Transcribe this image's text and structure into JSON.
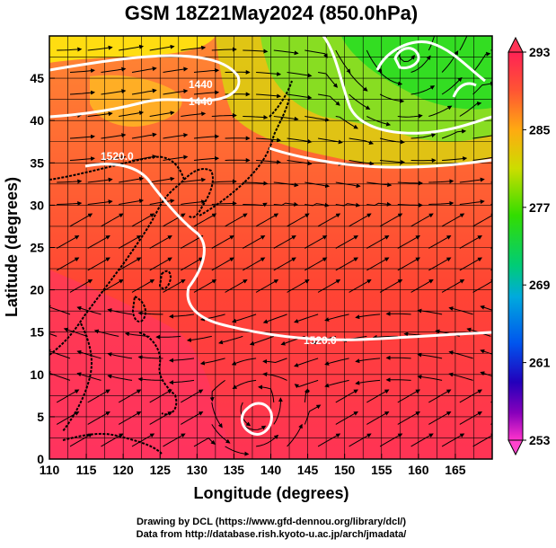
{
  "title": "GSM 18Z21May2024 (850.0hPa)",
  "x_axis": {
    "label": "Longitude (degrees)",
    "ticks": [
      "110",
      "115",
      "120",
      "125",
      "130",
      "135",
      "140",
      "145",
      "150",
      "155",
      "160",
      "165"
    ],
    "range": [
      110,
      170
    ]
  },
  "y_axis": {
    "label": "Latitude  (degrees)",
    "ticks": [
      "0",
      "5",
      "10",
      "15",
      "20",
      "25",
      "30",
      "35",
      "40",
      "45"
    ],
    "range": [
      0,
      50
    ]
  },
  "colorbar": {
    "ticks": [
      "293",
      "285",
      "277",
      "269",
      "261",
      "253"
    ],
    "range": [
      253,
      293
    ],
    "colors": [
      "#ff2255",
      "#ff3344",
      "#ff5533",
      "#ff8822",
      "#ffaa11",
      "#ddcc00",
      "#99dd00",
      "#33dd00",
      "#00cc66",
      "#00aacc",
      "#0077ee",
      "#1133dd",
      "#3300bb",
      "#7700bb",
      "#bb00bb",
      "#ff33cc"
    ]
  },
  "contour_labels": [
    "1440",
    "1440",
    "1520.0",
    "1520.0"
  ],
  "footer": {
    "line1": "Drawing by DCL (https://www.gfd-dennou.org/library/dcl/)",
    "line2": "Data from http://database.rish.kyoto-u.ac.jp/arch/jmadata/"
  }
}
